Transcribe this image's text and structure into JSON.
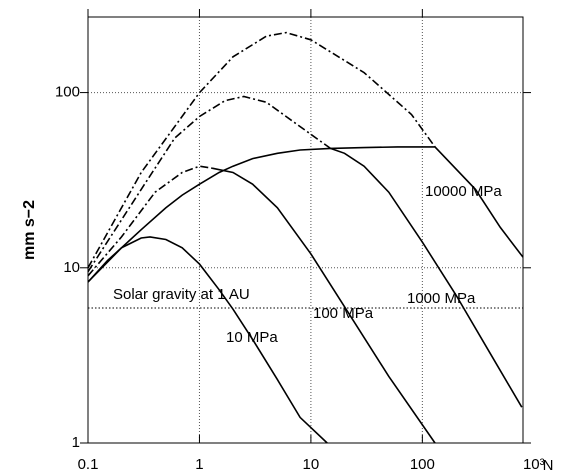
{
  "chart_data": {
    "type": "line",
    "ylabel": "mm s−2",
    "xlabel": "N",
    "xscale": "log",
    "yscale": "log",
    "grid": true,
    "xlim": [
      0.1,
      800
    ],
    "ylim": [
      1,
      270
    ],
    "xticks": [
      0.1,
      1,
      10,
      100,
      {
        "value": 1000,
        "label": "10³"
      }
    ],
    "yticks": [
      1,
      10,
      100
    ],
    "series": [
      {
        "color": "#000000",
        "style": "solid",
        "x": [
          0.1,
          0.15,
          0.2,
          0.3,
          0.36,
          0.5,
          0.7,
          1,
          1.5,
          2,
          3,
          5,
          8,
          14
        ],
        "values": [
          8.3,
          11,
          13,
          14.8,
          15,
          14.5,
          13,
          10.5,
          7.5,
          5.8,
          3.9,
          2.3,
          1.4,
          1.0
        ]
      },
      {
        "color": "#000000",
        "style": "solid",
        "x": [
          0.1,
          0.2,
          0.3,
          0.5,
          0.7,
          1,
          1.5,
          2,
          3,
          5,
          8,
          15,
          30,
          60,
          130,
          300,
          500,
          800
        ],
        "values": [
          8.3,
          13,
          16.5,
          22,
          26,
          30,
          35,
          38,
          42,
          45,
          47,
          48,
          48.5,
          49,
          49,
          28,
          17,
          11.5
        ]
      },
      {
        "color": "#000000",
        "style": "solid",
        "x": [
          1.3,
          2,
          3,
          5,
          10,
          20,
          50,
          130
        ],
        "values": [
          37,
          35,
          30,
          22,
          12,
          6,
          2.4,
          1
        ]
      },
      {
        "color": "#000000",
        "style": "solid",
        "x": [
          15,
          20,
          30,
          50,
          100,
          200,
          400,
          780
        ],
        "values": [
          48,
          45,
          38,
          27,
          14,
          7,
          3.3,
          1.6
        ]
      },
      {
        "color": "#000000",
        "style": "dashdot",
        "x": [
          0.1,
          0.2,
          0.4,
          0.7,
          1,
          1.3
        ],
        "values": [
          9,
          15,
          27,
          35,
          38,
          37
        ]
      },
      {
        "color": "#000000",
        "style": "dashdot",
        "x": [
          0.1,
          0.3,
          0.6,
          1,
          1.7,
          2.5,
          4,
          7,
          15
        ],
        "values": [
          9.5,
          28,
          55,
          73,
          90,
          95,
          88,
          68,
          48
        ]
      },
      {
        "color": "#000000",
        "style": "dashdot",
        "x": [
          0.1,
          0.3,
          1,
          2,
          4,
          6,
          10,
          30,
          80,
          130
        ],
        "values": [
          10,
          35,
          100,
          160,
          210,
          220,
          200,
          130,
          75,
          49
        ]
      }
    ],
    "reference_line": {
      "value": 5.9,
      "label": "Solar gravity at 1 AU"
    },
    "annotations": [
      "10 MPa",
      "100 MPa",
      "1000 MPa",
      "10000 MPa"
    ]
  }
}
